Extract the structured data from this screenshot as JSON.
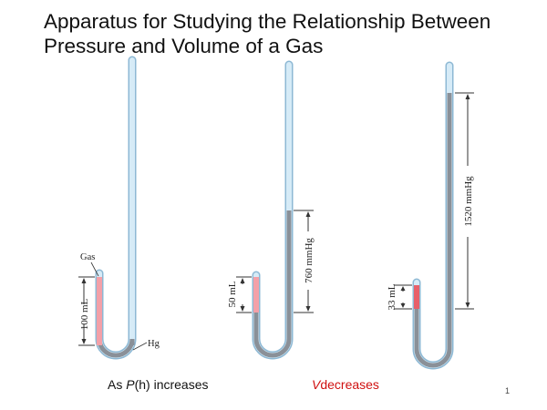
{
  "slide": {
    "title_line1": "Apparatus for Studying the Relationship Between",
    "title_line2": "Pressure and Volume of a Gas",
    "page_number": "1"
  },
  "labels": {
    "gas": "Gas",
    "hg": "Hg",
    "vol1": "100 mL",
    "vol2": "50 mL",
    "vol3": "33 mL",
    "height2": "760 mmHg",
    "height3": "1520 mmHg"
  },
  "caption": {
    "left_prefix": "As ",
    "left_var": "P",
    "left_suffix": "(h) increases",
    "right_var": "V",
    "right_suffix": "decreases"
  },
  "colors": {
    "tube_glass": "#cfe6f4",
    "tube_outline": "#8db8d4",
    "mercury": "#8a9098",
    "gas": "#f3a0a8",
    "gas_dense": "#e8606a",
    "caption_red": "#d01010"
  }
}
